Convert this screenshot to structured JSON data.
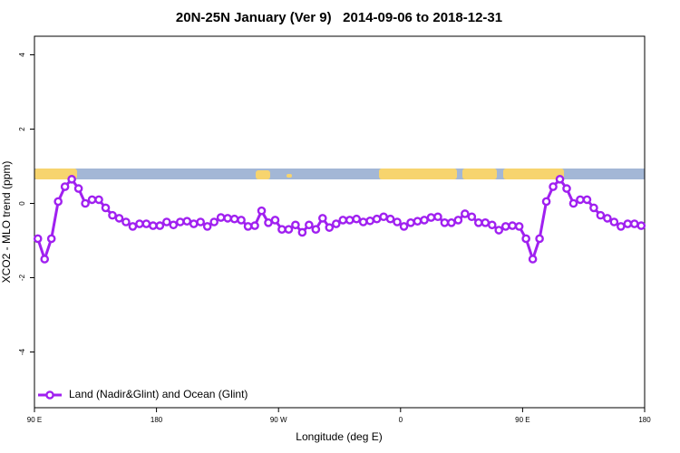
{
  "chart_data": {
    "type": "line",
    "title": "20N-25N January (Ver 9)   2014-09-06 to 2018-12-31",
    "xlabel": "Longitude (deg E)",
    "ylabel": "XCO2 - MLO trend (ppm)",
    "x": [
      92.5,
      97.5,
      102.5,
      107.5,
      112.5,
      117.5,
      122.5,
      127.5,
      132.5,
      137.5,
      142.5,
      147.5,
      152.5,
      157.5,
      162.5,
      167.5,
      172.5,
      177.5,
      182.5,
      187.5,
      192.5,
      197.5,
      202.5,
      207.5,
      212.5,
      217.5,
      222.5,
      227.5,
      232.5,
      237.5,
      242.5,
      247.5,
      252.5,
      257.5,
      262.5,
      267.5,
      272.5,
      277.5,
      282.5,
      287.5,
      292.5,
      297.5,
      302.5,
      307.5,
      312.5,
      317.5,
      322.5,
      327.5,
      332.5,
      337.5,
      342.5,
      347.5,
      352.5,
      357.5,
      362.5,
      367.5,
      372.5,
      377.5,
      382.5,
      387.5,
      392.5,
      397.5,
      402.5,
      407.5,
      412.5,
      417.5,
      422.5,
      427.5,
      432.5,
      437.5,
      442.5,
      447.5,
      452.5,
      457.5,
      462.5,
      467.5,
      472.5,
      477.5,
      482.5,
      487.5,
      492.5,
      497.5,
      502.5,
      507.5,
      512.5,
      517.5,
      522.5,
      527.5,
      532.5,
      537.5
    ],
    "series": [
      {
        "name": "Land (Nadir&Glint) and Ocean (Glint)",
        "color": "#a020f0",
        "values": [
          -0.95,
          -1.5,
          -0.95,
          0.05,
          0.45,
          0.65,
          0.4,
          0,
          0.1,
          0.1,
          -0.12,
          -0.32,
          -0.4,
          -0.5,
          -0.62,
          -0.55,
          -0.55,
          -0.6,
          -0.6,
          -0.5,
          -0.58,
          -0.5,
          -0.48,
          -0.55,
          -0.5,
          -0.62,
          -0.5,
          -0.38,
          -0.4,
          -0.42,
          -0.45,
          -0.62,
          -0.6,
          -0.2,
          -0.52,
          -0.45,
          -0.7,
          -0.7,
          -0.58,
          -0.78,
          -0.58,
          -0.7,
          -0.4,
          -0.65,
          -0.55,
          -0.45,
          -0.45,
          -0.42,
          -0.5,
          -0.47,
          -0.42,
          -0.36,
          -0.42,
          -0.5,
          -0.62,
          -0.52,
          -0.48,
          -0.45,
          -0.38,
          -0.36,
          -0.52,
          -0.52,
          -0.45,
          -0.28,
          -0.36,
          -0.52,
          -0.52,
          -0.58,
          -0.72,
          -0.62,
          -0.6,
          -0.62,
          -0.95,
          -1.5,
          -0.95,
          0.05,
          0.45,
          0.65,
          0.4,
          0,
          0.1,
          0.1,
          -0.12,
          -0.32,
          -0.4,
          -0.5,
          -0.62,
          -0.55,
          -0.55,
          -0.6
        ]
      }
    ],
    "xlim": [
      90,
      540
    ],
    "xticks": [
      {
        "value": 90,
        "label": "90 E"
      },
      180,
      {
        "value": 270,
        "label": "90 W"
      },
      {
        "value": 360,
        "label": "0"
      },
      {
        "value": 450,
        "label": "90 E"
      },
      {
        "value": 540,
        "label": "180"
      }
    ],
    "ylim": [
      -5.5,
      4.5
    ],
    "yticks": [
      -4,
      -2,
      0,
      2,
      4
    ],
    "legend": "bottom-left"
  }
}
